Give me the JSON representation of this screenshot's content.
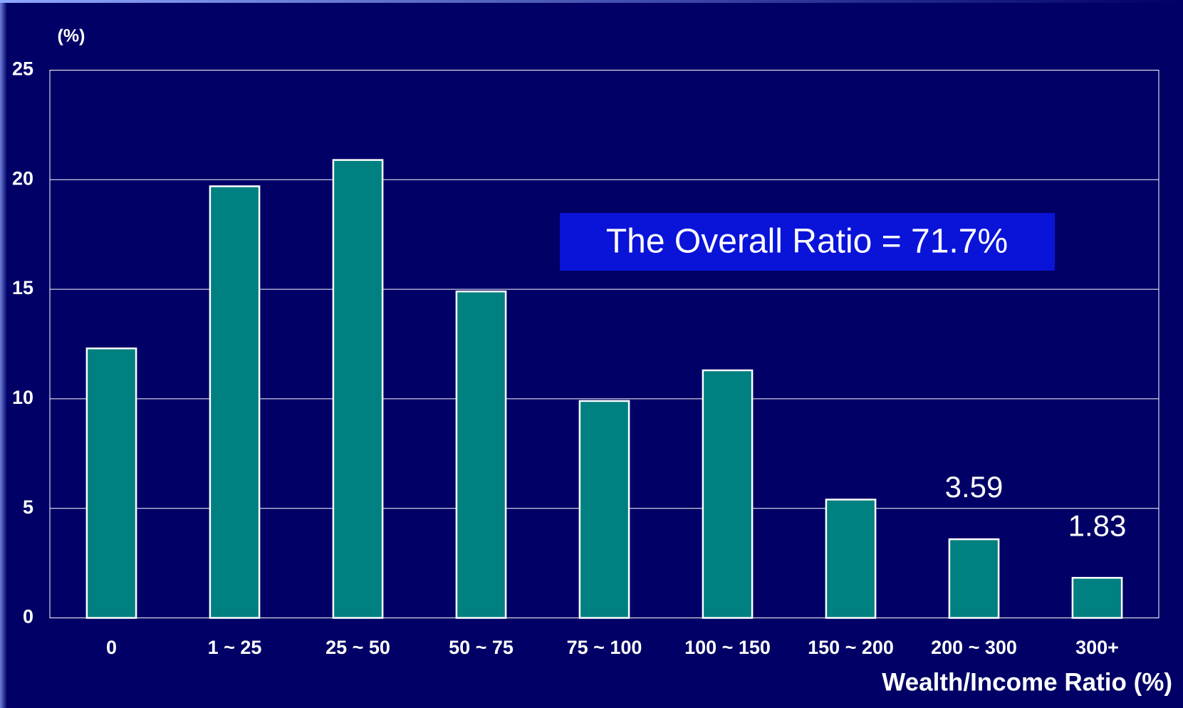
{
  "chart_data": {
    "type": "bar",
    "y_unit_label": "(%)",
    "x_axis_label": "Wealth/Income Ratio (%)",
    "annotation": "The Overall Ratio = 71.7%",
    "categories": [
      "0",
      "1 ~ 25",
      "25 ~ 50",
      "50 ~ 75",
      "75 ~ 100",
      "100 ~ 150",
      "150 ~ 200",
      "200 ~ 300",
      "300+"
    ],
    "values": [
      12.3,
      19.7,
      20.9,
      14.9,
      9.9,
      11.3,
      5.4,
      3.59,
      1.83
    ],
    "value_labels": [
      null,
      null,
      null,
      null,
      null,
      null,
      null,
      "3.59",
      "1.83"
    ],
    "color": "#008080",
    "ylim": [
      0,
      25
    ],
    "yticks": [
      0,
      5,
      10,
      15,
      20,
      25
    ],
    "grid": true
  }
}
